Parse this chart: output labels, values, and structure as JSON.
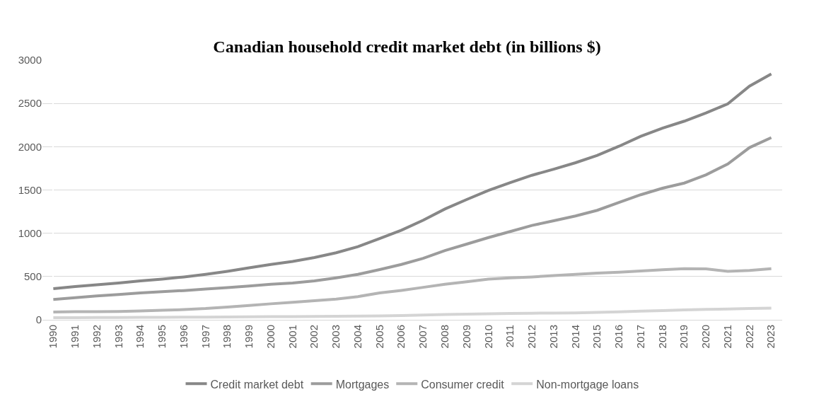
{
  "chart_data": {
    "type": "line",
    "title": "Canadian household credit market debt (in billions $)",
    "categories": [
      "1990",
      "1991",
      "1992",
      "1993",
      "1994",
      "1995",
      "1996",
      "1997",
      "1998",
      "1999",
      "2000",
      "2001",
      "2002",
      "2003",
      "2004",
      "2005",
      "2006",
      "2007",
      "2008",
      "2009",
      "2010",
      "2011",
      "2012",
      "2013",
      "2014",
      "2015",
      "2016",
      "2017",
      "2018",
      "2019",
      "2020",
      "2021",
      "2022",
      "2023"
    ],
    "series": [
      {
        "name": "Credit market debt",
        "color": "#878787",
        "values": [
          360,
          385,
          405,
          425,
          450,
          470,
          495,
          525,
          560,
          600,
          640,
          675,
          720,
          775,
          845,
          940,
          1035,
          1150,
          1280,
          1390,
          1495,
          1585,
          1670,
          1740,
          1815,
          1900,
          2005,
          2120,
          2215,
          2295,
          2390,
          2495,
          2700,
          2840
        ]
      },
      {
        "name": "Mortgages",
        "color": "#9c9c9c",
        "values": [
          235,
          255,
          275,
          293,
          310,
          325,
          338,
          355,
          372,
          390,
          410,
          425,
          450,
          485,
          525,
          580,
          640,
          710,
          800,
          875,
          950,
          1020,
          1090,
          1145,
          1200,
          1265,
          1355,
          1445,
          1520,
          1580,
          1675,
          1800,
          1990,
          2105
        ]
      },
      {
        "name": "Consumer credit",
        "color": "#b4b4b4",
        "values": [
          90,
          93,
          95,
          97,
          102,
          110,
          118,
          130,
          148,
          165,
          185,
          202,
          220,
          240,
          268,
          310,
          340,
          375,
          410,
          440,
          470,
          485,
          495,
          510,
          525,
          540,
          550,
          565,
          578,
          590,
          588,
          560,
          570,
          590
        ]
      },
      {
        "name": "Non-mortgage loans",
        "color": "#d4d4d4",
        "values": [
          25,
          25,
          26,
          27,
          28,
          29,
          30,
          31,
          33,
          34,
          36,
          37,
          38,
          40,
          42,
          45,
          50,
          56,
          62,
          66,
          70,
          73,
          76,
          78,
          80,
          85,
          92,
          100,
          106,
          115,
          120,
          125,
          130,
          135
        ]
      }
    ],
    "ylim": [
      0,
      3000
    ],
    "yticks": [
      0,
      500,
      1000,
      1500,
      2000,
      2500,
      3000
    ],
    "grid": "y",
    "legend": "bottom",
    "marker": "none",
    "line_style": "solid"
  }
}
